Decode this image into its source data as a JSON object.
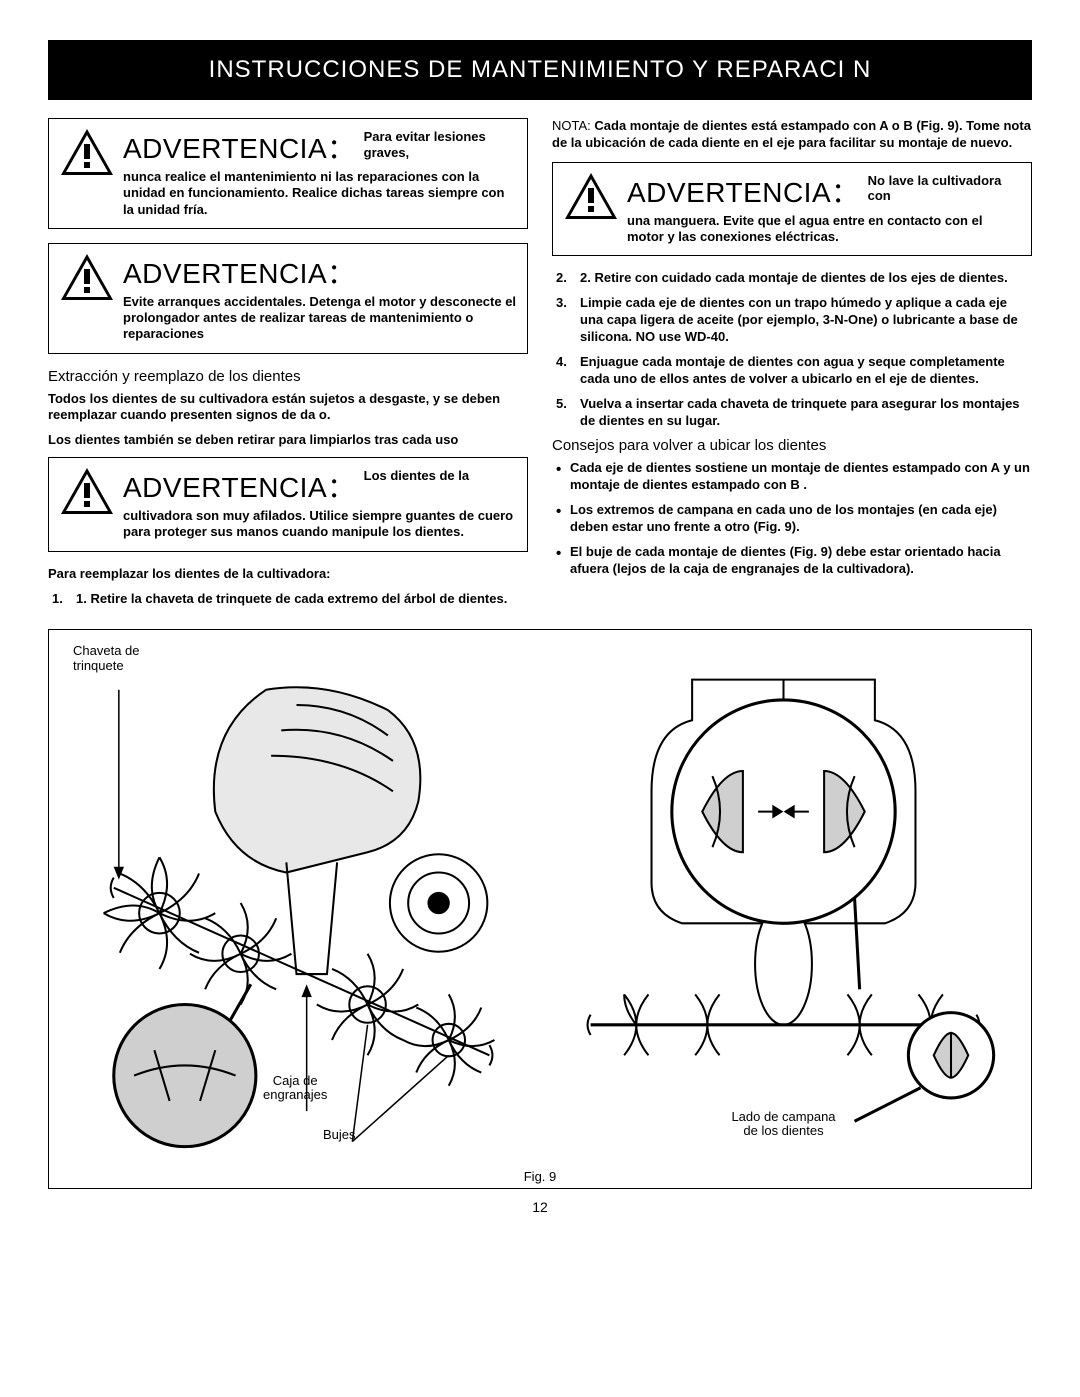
{
  "banner": "INSTRUCCIONES DE MANTENIMIENTO Y REPARACI    N",
  "page_number": "12",
  "left": {
    "warn1": {
      "title": "ADVERTENCIA：",
      "lead": "Para evitar lesiones graves,",
      "body": "nunca realice el mantenimiento ni las reparaciones con la unidad en funcionamiento. Realice dichas tareas siempre con la unidad fría."
    },
    "warn2": {
      "title": "ADVERTENCIA：",
      "body": "Evite arranques accidentales. Detenga el motor y desconecte el prolongador antes de realizar tareas de mantenimiento o reparaciones"
    },
    "section_h": "Extracción y reemplazo de los dientes",
    "p1": "Todos los dientes de su cultivadora están sujetos a desgaste, y se deben reemplazar cuando presenten signos de da    o.",
    "p2": "Los dientes también se deben retirar para limpiarlos tras cada uso",
    "warn3": {
      "title": "ADVERTENCIA：",
      "lead": "Los dientes de la",
      "body": "cultivadora son muy afilados. Utilice siempre guantes de cuero para proteger sus manos cuando manipule los dientes."
    },
    "p3": "Para reemplazar los dientes de la cultivadora:",
    "step1_num": "1.",
    "step1": "1. Retire la chaveta de trinquete de cada extremo del árbol de dientes."
  },
  "right": {
    "note_label": "NOTA:",
    "note_text": "Cada montaje de dientes está estampado con    A    o    B    (Fig. 9). Tome nota de la ubicación de cada diente en el eje para facilitar su montaje de nuevo.",
    "warn4": {
      "title": "ADVERTENCIA：",
      "lead": "No lave la cultivadora con",
      "body": "una manguera. Evite que el agua entre en contacto con el motor y las conexiones eléctricas."
    },
    "step2_num": "2.",
    "step2": "2. Retire con cuidado cada montaje de dientes de los ejes de dientes.",
    "step3_num": "3.",
    "step3": "Limpie cada eje de dientes con un trapo húmedo y aplique a cada eje una capa ligera de aceite (por ejemplo, 3-N-One) o lubricante a base de silicona. NO use WD-40.",
    "step4_num": "4.",
    "step4": "Enjuague cada montaje de dientes con agua y seque completamente cada uno de ellos antes de volver a ubicarlo en el eje de dientes.",
    "step5_num": "5.",
    "step5": "Vuelva a insertar cada chaveta de trinquete para asegurar los montajes de dientes en su lugar.",
    "tips_h": "Consejos para volver a ubicar los dientes",
    "b1": "Cada eje de dientes sostiene un montaje de dientes estampado con    A    y un montaje de dientes estampado con    B   .",
    "b2": "Los extremos de campana en cada uno de los montajes (en cada eje) deben estar uno frente a otro (Fig. 9).",
    "b3": "El buje de cada montaje de dientes (Fig. 9) debe estar orientado hacia afuera (lejos de la caja de engranajes de la cultivadora)."
  },
  "figure": {
    "caption": "Fig. 9",
    "label_chaveta": "Chaveta de\ntrinquete",
    "label_caja": "Caja de\nengranajes",
    "label_bujes": "Bujes",
    "label_campana": "Lado de campana\nde los dientes"
  },
  "style": {
    "banner_bg": "#000000",
    "banner_fg": "#ffffff",
    "page_bg": "#ffffff",
    "text": "#000000",
    "border": "#000000"
  }
}
